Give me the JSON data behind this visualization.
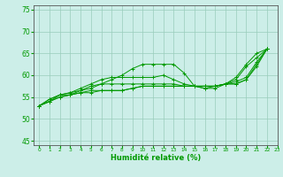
{
  "xlabel": "Humidité relative (%)",
  "xlim": [
    -0.5,
    23
  ],
  "ylim": [
    44,
    76
  ],
  "yticks": [
    45,
    50,
    55,
    60,
    65,
    70,
    75
  ],
  "xtick_labels": [
    "0",
    "1",
    "2",
    "3",
    "4",
    "5",
    "6",
    "7",
    "8",
    "9",
    "10",
    "11",
    "12",
    "13",
    "14",
    "15",
    "16",
    "17",
    "18",
    "19",
    "20",
    "21",
    "22",
    "23"
  ],
  "background_color": "#cceee8",
  "grid_color": "#99ccbb",
  "line_color": "#009900",
  "lines": [
    [
      53,
      54,
      55.5,
      55.5,
      56.5,
      57,
      58,
      59,
      60,
      61.5,
      62.5,
      62.5,
      62.5,
      62.5,
      60.5,
      57.5,
      57,
      57,
      58,
      59,
      62,
      64,
      66
    ],
    [
      53,
      54.5,
      55.5,
      56,
      57,
      58,
      59,
      59.5,
      59.5,
      59.5,
      59.5,
      59.5,
      60,
      59,
      58,
      57.5,
      57,
      57.5,
      58,
      59.5,
      62.5,
      65,
      66
    ],
    [
      53,
      54.5,
      55.5,
      56,
      56.5,
      57.5,
      58,
      58,
      58,
      58,
      58,
      58,
      58,
      58,
      57.5,
      57.5,
      57.5,
      57.5,
      58,
      58,
      59,
      62,
      66
    ],
    [
      53,
      54,
      55,
      55.5,
      56,
      56.5,
      56.5,
      56.5,
      56.5,
      57,
      57.5,
      57.5,
      57.5,
      57.5,
      57.5,
      57.5,
      57.5,
      57.5,
      58,
      58.5,
      59.5,
      63,
      66
    ],
    [
      53,
      54,
      55,
      55.5,
      56,
      56,
      56.5,
      56.5,
      56.5,
      57,
      57.5,
      57.5,
      57.5,
      57.5,
      57.5,
      57.5,
      57.5,
      57.5,
      58,
      58,
      59,
      62.5,
      66
    ]
  ]
}
